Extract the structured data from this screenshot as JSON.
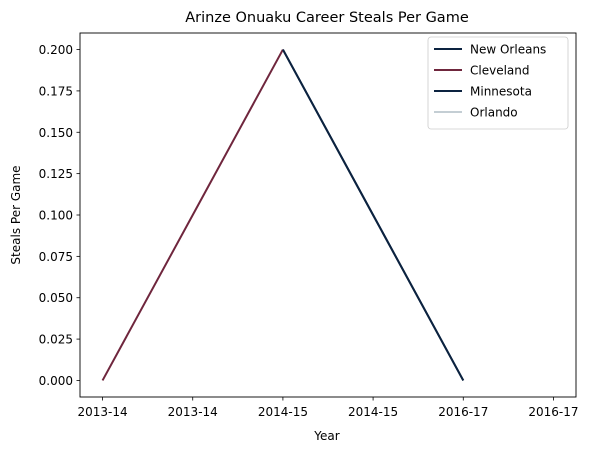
{
  "chart_data": {
    "type": "line",
    "title": "Arinze Onuaku Career Steals Per Game",
    "xlabel": "Year",
    "ylabel": "Steals Per Game",
    "x_tick_labels": [
      "2013-14",
      "2013-14",
      "2014-15",
      "2014-15",
      "2016-17",
      "2016-17"
    ],
    "ylim": [
      -0.01,
      0.21
    ],
    "y_ticks": [
      "0.000",
      "0.025",
      "0.050",
      "0.075",
      "0.100",
      "0.125",
      "0.150",
      "0.175",
      "0.200"
    ],
    "grid": false,
    "legend_position": "top-right",
    "series": [
      {
        "name": "New Orleans",
        "color": "#0c2340",
        "x": [
          2,
          3,
          4
        ],
        "y": [
          0.2,
          0.1,
          0.0
        ]
      },
      {
        "name": "Cleveland",
        "color": "#6f263d",
        "x": [
          0,
          1,
          2
        ],
        "y": [
          0.0,
          0.1,
          0.2
        ]
      },
      {
        "name": "Minnesota",
        "color": "#0c2340",
        "x": [
          2,
          3,
          4
        ],
        "y": [
          0.2,
          0.1,
          0.0
        ]
      },
      {
        "name": "Orlando",
        "color": "#c4ced4",
        "x": [
          2,
          2
        ],
        "y": [
          0.2,
          0.2
        ]
      }
    ]
  }
}
